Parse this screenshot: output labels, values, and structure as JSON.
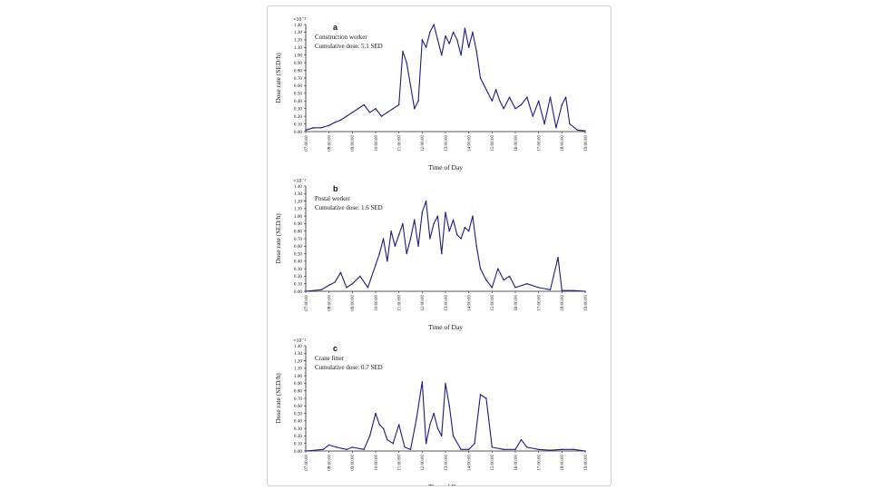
{
  "chart_data": [
    {
      "type": "line",
      "panel_label": "a",
      "annotation_title": "Construction worker",
      "annotation_dose": "Cumulative dose: 5.1 SED",
      "ylabel": "Dose rate (SED/h)",
      "xlabel": "Time of Day",
      "y_exponent": "×10⁻²",
      "ylim": [
        0,
        1.4
      ],
      "y_ticks": [
        "0.00",
        "0.10",
        "0.20",
        "0.30",
        "0.40",
        "0.50",
        "0.60",
        "0.70",
        "0.80",
        "0.90",
        "1.00",
        "1.10",
        "1.20",
        "1.30",
        "1.40"
      ],
      "xlim": [
        "07:00:00",
        "19:00:00"
      ],
      "x_ticks": [
        "07:00:00",
        "08:00:00",
        "09:00:00",
        "10:00:00",
        "11:00:00",
        "12:00:00",
        "13:00:00",
        "14:00:00",
        "15:00:00",
        "16:00:00",
        "17:00:00",
        "18:00:00",
        "19:00:00"
      ],
      "color": "#1a1a80",
      "series": [
        {
          "x": [
            "07:00:00",
            "07:20:00",
            "07:40:00",
            "08:00:00",
            "08:15:00",
            "08:30:00",
            "08:45:00",
            "09:00:00",
            "09:15:00",
            "09:30:00",
            "09:45:00",
            "10:00:00",
            "10:15:00",
            "10:30:00",
            "10:45:00",
            "11:00:00",
            "11:10:00",
            "11:20:00",
            "11:30:00",
            "11:40:00",
            "11:50:00",
            "12:00:00",
            "12:10:00",
            "12:20:00",
            "12:30:00",
            "12:40:00",
            "12:50:00",
            "13:00:00",
            "13:10:00",
            "13:20:00",
            "13:30:00",
            "13:40:00",
            "13:50:00",
            "14:00:00",
            "14:10:00",
            "14:20:00",
            "14:30:00",
            "14:40:00",
            "14:50:00",
            "15:00:00",
            "15:10:00",
            "15:20:00",
            "15:30:00",
            "15:45:00",
            "16:00:00",
            "16:15:00",
            "16:30:00",
            "16:45:00",
            "17:00:00",
            "17:15:00",
            "17:30:00",
            "17:45:00",
            "18:00:00",
            "18:10:00",
            "18:20:00",
            "18:40:00",
            "19:00:00"
          ],
          "values": [
            0.02,
            0.05,
            0.05,
            0.08,
            0.12,
            0.15,
            0.2,
            0.25,
            0.3,
            0.35,
            0.25,
            0.3,
            0.2,
            0.25,
            0.3,
            0.35,
            1.05,
            0.9,
            0.6,
            0.3,
            0.4,
            1.2,
            1.1,
            1.3,
            1.4,
            1.2,
            1.0,
            1.25,
            1.15,
            1.3,
            1.2,
            1.0,
            1.35,
            1.1,
            1.3,
            1.05,
            0.7,
            0.6,
            0.5,
            0.4,
            0.55,
            0.4,
            0.3,
            0.45,
            0.3,
            0.35,
            0.45,
            0.2,
            0.4,
            0.1,
            0.45,
            0.05,
            0.35,
            0.45,
            0.1,
            0.02,
            0.01
          ]
        }
      ]
    },
    {
      "type": "line",
      "panel_label": "b",
      "annotation_title": "Postal worker",
      "annotation_dose": "Cumulative dose: 1.6 SED",
      "ylabel": "Dose rate (SED/h)",
      "xlabel": "Time of Day",
      "y_exponent": "×10⁻²",
      "ylim": [
        0,
        1.4
      ],
      "y_ticks": [
        "0.00",
        "0.10",
        "0.20",
        "0.30",
        "0.40",
        "0.50",
        "0.60",
        "0.70",
        "0.80",
        "0.90",
        "1.00",
        "1.10",
        "1.20",
        "1.30",
        "1.40"
      ],
      "xlim": [
        "07:00:00",
        "19:00:00"
      ],
      "x_ticks": [
        "07:00:00",
        "08:00:00",
        "09:00:00",
        "10:00:00",
        "11:00:00",
        "12:00:00",
        "13:00:00",
        "14:00:00",
        "15:00:00",
        "16:00:00",
        "17:00:00",
        "18:00:00",
        "19:00:00"
      ],
      "color": "#1a1a80",
      "series": [
        {
          "x": [
            "07:00:00",
            "07:40:00",
            "08:00:00",
            "08:15:00",
            "08:30:00",
            "08:45:00",
            "09:00:00",
            "09:20:00",
            "09:40:00",
            "10:00:00",
            "10:10:00",
            "10:20:00",
            "10:30:00",
            "10:40:00",
            "10:50:00",
            "11:00:00",
            "11:10:00",
            "11:20:00",
            "11:30:00",
            "11:40:00",
            "11:50:00",
            "12:00:00",
            "12:10:00",
            "12:20:00",
            "12:30:00",
            "12:40:00",
            "12:50:00",
            "13:00:00",
            "13:10:00",
            "13:20:00",
            "13:30:00",
            "13:40:00",
            "13:50:00",
            "14:00:00",
            "14:10:00",
            "14:20:00",
            "14:30:00",
            "14:45:00",
            "15:00:00",
            "15:15:00",
            "15:30:00",
            "15:45:00",
            "16:00:00",
            "16:30:00",
            "17:00:00",
            "17:30:00",
            "17:50:00",
            "18:00:00",
            "18:30:00",
            "19:00:00"
          ],
          "values": [
            0.0,
            0.02,
            0.08,
            0.12,
            0.25,
            0.05,
            0.1,
            0.2,
            0.05,
            0.35,
            0.5,
            0.7,
            0.4,
            0.8,
            0.6,
            0.75,
            0.9,
            0.5,
            0.7,
            0.95,
            0.6,
            1.05,
            1.2,
            0.7,
            0.9,
            1.0,
            0.5,
            1.05,
            0.8,
            0.95,
            0.75,
            0.7,
            0.85,
            0.8,
            1.0,
            0.6,
            0.3,
            0.15,
            0.05,
            0.3,
            0.15,
            0.2,
            0.05,
            0.1,
            0.05,
            0.02,
            0.45,
            0.01,
            0.01,
            0.0
          ]
        }
      ]
    },
    {
      "type": "line",
      "panel_label": "c",
      "annotation_title": "Crane fitter",
      "annotation_dose": "Cumulative dose: 0.7 SED",
      "ylabel": "Dose rate (SED/h)",
      "xlabel": "Time of Day",
      "y_exponent": "×10⁻²",
      "ylim": [
        0,
        1.4
      ],
      "y_ticks": [
        "0.00",
        "0.10",
        "0.20",
        "0.30",
        "0.40",
        "0.50",
        "0.60",
        "0.70",
        "0.80",
        "0.90",
        "1.00",
        "1.10",
        "1.20",
        "1.30",
        "1.40"
      ],
      "xlim": [
        "07:00:00",
        "19:00:00"
      ],
      "x_ticks": [
        "07:00:00",
        "08:00:00",
        "09:00:00",
        "10:00:00",
        "11:00:00",
        "12:00:00",
        "13:00:00",
        "14:00:00",
        "15:00:00",
        "16:00:00",
        "17:00:00",
        "18:00:00",
        "19:00:00"
      ],
      "color": "#1a1a80",
      "series": [
        {
          "x": [
            "07:00:00",
            "07:45:00",
            "08:00:00",
            "08:20:00",
            "08:45:00",
            "09:00:00",
            "09:30:00",
            "09:45:00",
            "10:00:00",
            "10:10:00",
            "10:20:00",
            "10:30:00",
            "10:45:00",
            "11:00:00",
            "11:15:00",
            "11:30:00",
            "11:45:00",
            "12:00:00",
            "12:10:00",
            "12:20:00",
            "12:30:00",
            "12:40:00",
            "12:50:00",
            "13:00:00",
            "13:10:00",
            "13:20:00",
            "13:40:00",
            "14:00:00",
            "14:15:00",
            "14:30:00",
            "14:45:00",
            "15:00:00",
            "15:30:00",
            "16:00:00",
            "16:15:00",
            "16:30:00",
            "17:00:00",
            "17:30:00",
            "18:00:00",
            "18:30:00",
            "19:00:00"
          ],
          "values": [
            0.0,
            0.02,
            0.08,
            0.05,
            0.02,
            0.05,
            0.02,
            0.2,
            0.5,
            0.35,
            0.3,
            0.15,
            0.1,
            0.35,
            0.05,
            0.02,
            0.42,
            0.92,
            0.1,
            0.35,
            0.5,
            0.3,
            0.2,
            0.9,
            0.6,
            0.2,
            0.02,
            0.02,
            0.1,
            0.75,
            0.7,
            0.05,
            0.02,
            0.02,
            0.15,
            0.05,
            0.02,
            0.01,
            0.02,
            0.02,
            0.0
          ]
        }
      ]
    }
  ]
}
